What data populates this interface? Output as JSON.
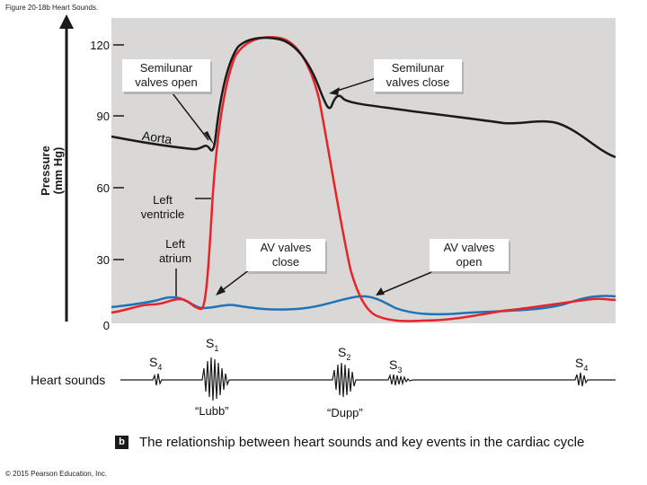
{
  "figure_caption": "Figure 20-18b Heart Sounds.",
  "copyright": "© 2015 Pearson Education, Inc.",
  "y_axis": {
    "label_line1": "Pressure",
    "label_line2": "(mm Hg)",
    "ticks": [
      "120",
      "90",
      "60",
      "30",
      "0"
    ]
  },
  "callouts": {
    "semilunar_open": "Semilunar valves open",
    "semilunar_close": "Semilunar valves close",
    "av_close": "AV valves close",
    "av_open": "AV valves open"
  },
  "curve_labels": {
    "aorta": "Aorta",
    "left_ventricle": "Left ventricle",
    "left_atrium": "Left atrium"
  },
  "heart_sounds": {
    "row_label": "Heart sounds",
    "s4_first": {
      "letter": "S",
      "sub": "4"
    },
    "s1": {
      "letter": "S",
      "sub": "1"
    },
    "s2": {
      "letter": "S",
      "sub": "2"
    },
    "s3": {
      "letter": "S",
      "sub": "3"
    },
    "s4_last": {
      "letter": "S",
      "sub": "4"
    },
    "lubb": "“Lubb”",
    "dupp": "“Dupp”"
  },
  "panel_badge": "b",
  "description": "The relationship between heart sounds and key events in the cardiac cycle",
  "colors": {
    "panel_bg": "#d9d8d6",
    "aorta": "#1a1a1a",
    "left_ventricle": "#e8232a",
    "left_atrium": "#1f73b7"
  }
}
